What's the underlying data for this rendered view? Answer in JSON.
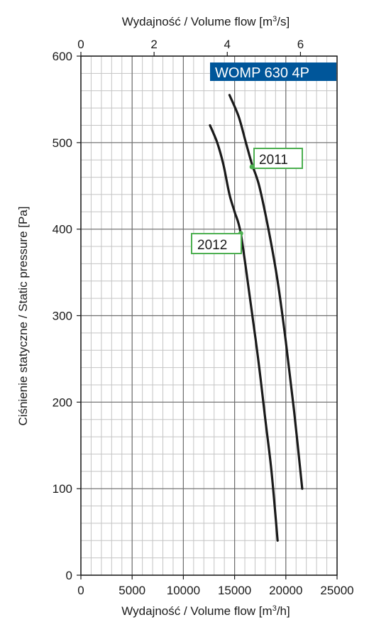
{
  "chart_data": {
    "type": "line",
    "model_label": "WOMP 630 4P",
    "top_axis": {
      "label_prefix": "Wydajność / Volume flow [m",
      "label_sup": "3",
      "label_suffix": "/s]",
      "range": [
        0,
        7
      ],
      "ticks": [
        0,
        2,
        4,
        6
      ],
      "tick_labels": [
        "0",
        "2",
        "4",
        "6"
      ]
    },
    "x_axis": {
      "label_prefix": "Wydajność / Volume flow [m",
      "label_sup": "3",
      "label_suffix": "/h]",
      "range": [
        0,
        25000
      ],
      "ticks": [
        0,
        5000,
        10000,
        15000,
        20000,
        25000
      ],
      "tick_labels": [
        "0",
        "5000",
        "10000",
        "15000",
        "20000",
        "25000"
      ],
      "minor_step": 1000
    },
    "y_axis": {
      "label": "Ciśnienie statyczne / Static pressure [Pa]",
      "range": [
        0,
        600
      ],
      "ticks": [
        0,
        100,
        200,
        300,
        400,
        500,
        600
      ],
      "tick_labels": [
        "0",
        "100",
        "200",
        "300",
        "400",
        "500",
        "600"
      ],
      "minor_step": 20
    },
    "grid": true,
    "series": [
      {
        "name": "2011",
        "color": "#1a1a1a",
        "x": [
          14500,
          15400,
          16100,
          16700,
          17400,
          18300,
          19200,
          20000,
          20800,
          21600
        ],
        "y": [
          555,
          530,
          500,
          475,
          450,
          400,
          340,
          270,
          190,
          100
        ],
        "marker": {
          "x": 16700,
          "y": 472
        }
      },
      {
        "name": "2012",
        "color": "#1a1a1a",
        "x": [
          12600,
          13300,
          13900,
          14500,
          15000,
          15600,
          16500,
          17300,
          18000,
          18600,
          19200
        ],
        "y": [
          520,
          500,
          475,
          440,
          420,
          395,
          320,
          250,
          180,
          120,
          40
        ],
        "marker": {
          "x": 15600,
          "y": 395
        }
      }
    ],
    "label_box_color": "#4caf50",
    "model_box_color": "#00569a"
  }
}
